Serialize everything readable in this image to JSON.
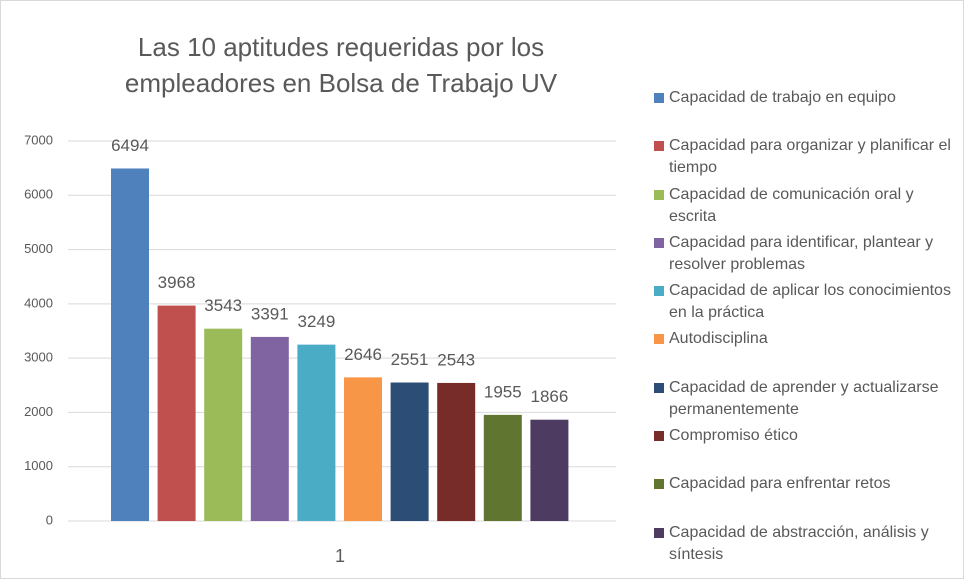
{
  "chart_data": {
    "type": "bar",
    "title": "Las 10 aptitudes requeridas por los empleadores en Bolsa de Trabajo UV",
    "categories": [
      "1"
    ],
    "series": [
      {
        "name": "Capacidad de trabajo en equipo",
        "color": "#4f81bd",
        "values": [
          6494
        ]
      },
      {
        "name": "Capacidad para organizar y planificar el tiempo",
        "color": "#c0504d",
        "values": [
          3968
        ]
      },
      {
        "name": "Capacidad de comunicación oral y escrita",
        "color": "#9bbb59",
        "values": [
          3543
        ]
      },
      {
        "name": "Capacidad para identificar, plantear y resolver problemas",
        "color": "#8064a2",
        "values": [
          3391
        ]
      },
      {
        "name": "Capacidad de aplicar los conocimientos en la práctica",
        "color": "#4bacc6",
        "values": [
          3249
        ]
      },
      {
        "name": "Autodisciplina",
        "color": "#f79646",
        "values": [
          2646
        ]
      },
      {
        "name": "Capacidad de aprender y actualizarse permanentemente",
        "color": "#2c4d75",
        "values": [
          2551
        ]
      },
      {
        "name": "Compromiso ético",
        "color": "#772c2a",
        "values": [
          2543
        ]
      },
      {
        "name": "Capacidad para enfrentar retos",
        "color": "#5f7530",
        "values": [
          1955
        ]
      },
      {
        "name": "Capacidad de abstracción, análisis y síntesis",
        "color": "#4d3b62",
        "values": [
          1866
        ]
      }
    ],
    "ylim": [
      0,
      7000
    ],
    "yticks": [
      0,
      1000,
      2000,
      3000,
      4000,
      5000,
      6000,
      7000
    ],
    "grid": true,
    "legend": "right"
  }
}
